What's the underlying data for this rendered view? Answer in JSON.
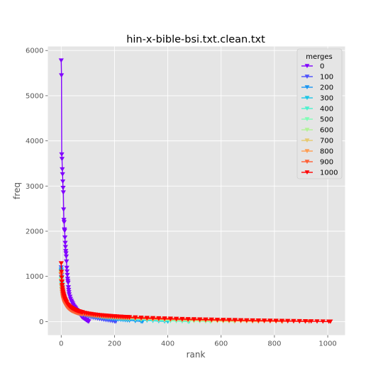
{
  "chart_data": {
    "type": "line",
    "title": "hin-x-bible-bsi.txt.clean.txt",
    "xlabel": "rank",
    "ylabel": "freq",
    "xlim": [
      -50,
      1065
    ],
    "ylim": [
      -300,
      6090
    ],
    "x_ticks": [
      0,
      200,
      400,
      600,
      800,
      1000
    ],
    "y_ticks": [
      0,
      1000,
      2000,
      3000,
      4000,
      5000,
      6000
    ],
    "grid": true,
    "marker": "triangle-down",
    "legend": {
      "title": "merges",
      "position": "top-right"
    },
    "series": [
      {
        "name": "0",
        "color": "#8000ff",
        "max_rank": 103,
        "values": [
          5780,
          5450,
          3700,
          3600,
          3370,
          3260,
          3100,
          2960,
          2860,
          2480,
          2250,
          2200,
          2040,
          2010,
          1860,
          1740,
          1650,
          1560,
          1510,
          1440,
          1330,
          1190,
          1110,
          1030,
          950,
          900,
          860,
          760,
          700,
          650,
          600,
          550,
          500,
          460,
          430,
          400,
          370,
          340,
          320,
          300,
          280,
          260,
          240,
          220,
          200,
          180,
          160,
          140,
          120,
          100,
          90,
          80,
          70,
          60,
          50,
          40,
          30,
          20,
          10,
          0
        ]
      },
      {
        "name": "100",
        "color": "#4c50fc",
        "max_rank": 205,
        "first_freq": 1200
      },
      {
        "name": "200",
        "color": "#1996f3",
        "max_rank": 305,
        "first_freq": 1150
      },
      {
        "name": "300",
        "color": "#1cc6e6",
        "max_rank": 400,
        "first_freq": 1120
      },
      {
        "name": "400",
        "color": "#4cf2ce",
        "max_rank": 480,
        "first_freq": 1100
      },
      {
        "name": "500",
        "color": "#7ffeb6",
        "max_rank": 560,
        "first_freq": 1080
      },
      {
        "name": "600",
        "color": "#b2f396",
        "max_rank": 650,
        "first_freq": 1070
      },
      {
        "name": "700",
        "color": "#e6c96f",
        "max_rank": 740,
        "first_freq": 1060
      },
      {
        "name": "800",
        "color": "#ff9d52",
        "max_rank": 830,
        "first_freq": 1050
      },
      {
        "name": "900",
        "color": "#ff5f35",
        "max_rank": 930,
        "first_freq": 1040
      },
      {
        "name": "1000",
        "color": "#ff0000",
        "max_rank": 1010,
        "first_freq": 1290
      }
    ]
  }
}
